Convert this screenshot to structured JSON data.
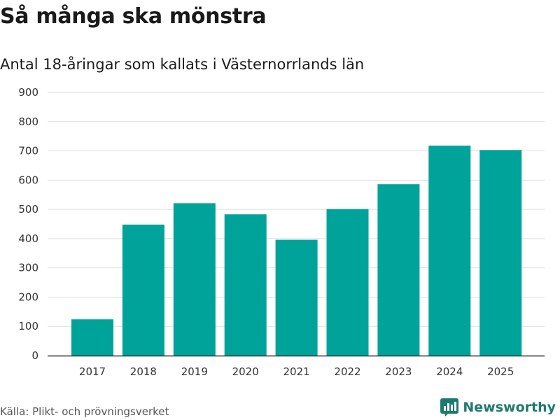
{
  "header": {
    "title": "Så många ska mönstra",
    "subtitle": "Antal 18-åringar som kallats i Västernorrlands län"
  },
  "footer": {
    "source": "Källa: Plikt- och prövningsverket",
    "brand": "Newsworthy",
    "brand_icon": "bar-chart-logo-icon"
  },
  "colors": {
    "bar": "#00a39a",
    "brand": "#1f7a6e",
    "grid": "#dddddd",
    "axis": "#333333"
  },
  "chart_data": {
    "type": "bar",
    "title": "Så många ska mönstra",
    "subtitle": "Antal 18-åringar som kallats i Västernorrlands län",
    "xlabel": "",
    "ylabel": "",
    "categories": [
      "2017",
      "2018",
      "2019",
      "2020",
      "2021",
      "2022",
      "2023",
      "2024",
      "2025"
    ],
    "values": [
      124,
      448,
      521,
      483,
      396,
      501,
      586,
      718,
      703
    ],
    "ylim": [
      0,
      900
    ],
    "yticks": [
      "0",
      "100",
      "200",
      "300",
      "400",
      "500",
      "600",
      "700",
      "800",
      "900"
    ],
    "grid": true,
    "legend": "none"
  }
}
